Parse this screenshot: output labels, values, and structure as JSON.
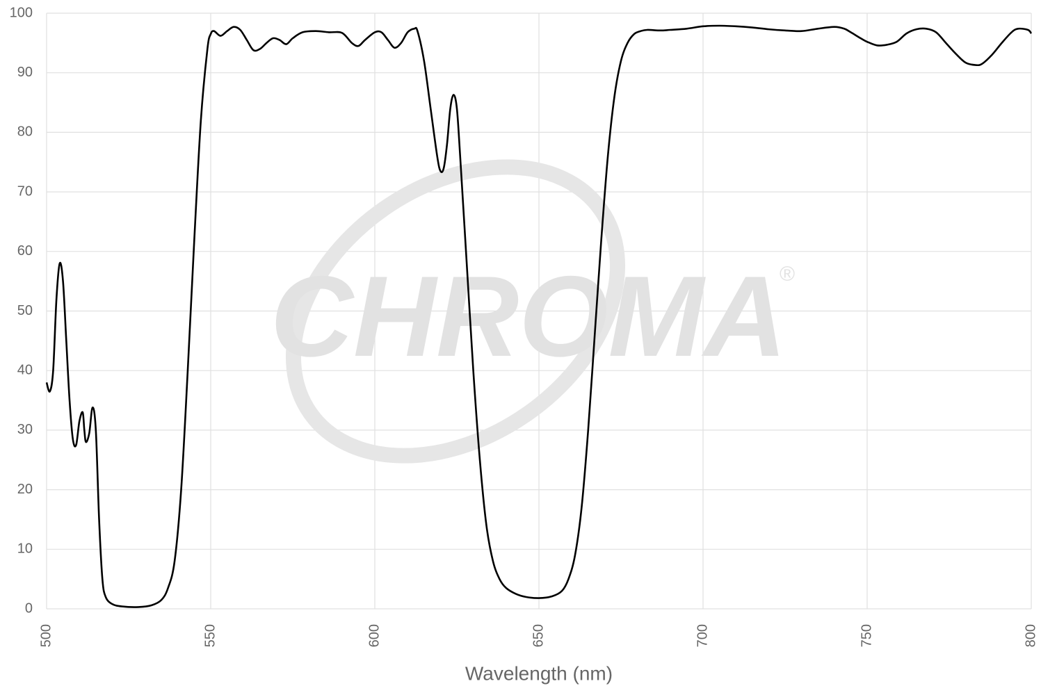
{
  "chart_data": {
    "type": "line",
    "watermark": "CHROMA",
    "watermark_mark": "®",
    "x_label": "Wavelength (nm)",
    "x": [
      500,
      501,
      502,
      503,
      504,
      505,
      506,
      507,
      508,
      509,
      510,
      511,
      511.5,
      512,
      513,
      514,
      515,
      516,
      517,
      518,
      520,
      523,
      528,
      532,
      535,
      537,
      539,
      541,
      543,
      545,
      547,
      549,
      550,
      551,
      553,
      555,
      557,
      559,
      561,
      563,
      565,
      567,
      569,
      571,
      573,
      575,
      578,
      582,
      586,
      590,
      593,
      595,
      597,
      600,
      602,
      604,
      606,
      608,
      610,
      612,
      613,
      615,
      617,
      619,
      620,
      621,
      622,
      623,
      624,
      625,
      626,
      628,
      630,
      632,
      634,
      636,
      638,
      640,
      643,
      646,
      650,
      654,
      657,
      659,
      661,
      663,
      665,
      667,
      669,
      671,
      673,
      675,
      677,
      679,
      681,
      683,
      687,
      690,
      695,
      700,
      705,
      710,
      715,
      720,
      725,
      730,
      735,
      740,
      743,
      745,
      748,
      750,
      753,
      756,
      759,
      762,
      765,
      768,
      771,
      774,
      777,
      780,
      783,
      785,
      788,
      791,
      794,
      796,
      799,
      800
    ],
    "values": [
      38,
      36.5,
      40,
      52,
      58,
      55,
      45,
      35,
      28.5,
      27.5,
      31.5,
      33,
      30,
      28,
      29.5,
      33.8,
      30,
      15,
      5,
      2,
      0.8,
      0.4,
      0.3,
      0.6,
      1.5,
      3.5,
      8,
      20,
      40,
      62,
      82,
      94,
      96.5,
      97,
      96.2,
      97,
      97.7,
      97.2,
      95.5,
      93.8,
      94,
      95,
      95.8,
      95.5,
      94.8,
      95.8,
      96.8,
      97,
      96.8,
      96.7,
      95,
      94.5,
      95.5,
      96.8,
      96.8,
      95.5,
      94.2,
      95,
      96.8,
      97.4,
      97,
      92,
      84,
      76,
      73.5,
      74,
      78,
      84,
      86.3,
      84,
      76,
      58,
      40,
      25,
      14,
      8,
      5,
      3.5,
      2.5,
      2,
      1.8,
      2.1,
      3,
      5,
      9,
      17,
      30,
      46,
      62,
      76,
      86,
      92,
      95,
      96.5,
      97,
      97.2,
      97.1,
      97.2,
      97.4,
      97.8,
      97.9,
      97.8,
      97.6,
      97.3,
      97.1,
      97,
      97.4,
      97.7,
      97.4,
      96.8,
      95.8,
      95.2,
      94.6,
      94.7,
      95.2,
      96.6,
      97.3,
      97.4,
      96.8,
      95,
      93.2,
      91.7,
      91.3,
      91.5,
      93,
      95,
      96.8,
      97.4,
      97.2,
      96.6
    ],
    "color": "#000000",
    "xlim": [
      500,
      800
    ],
    "xticks": [
      500,
      550,
      600,
      650,
      700,
      750,
      800
    ],
    "ylim": [
      0,
      100
    ],
    "yticks": [
      0,
      10,
      20,
      30,
      40,
      50,
      60,
      70,
      80,
      90,
      100
    ],
    "grid": true
  }
}
